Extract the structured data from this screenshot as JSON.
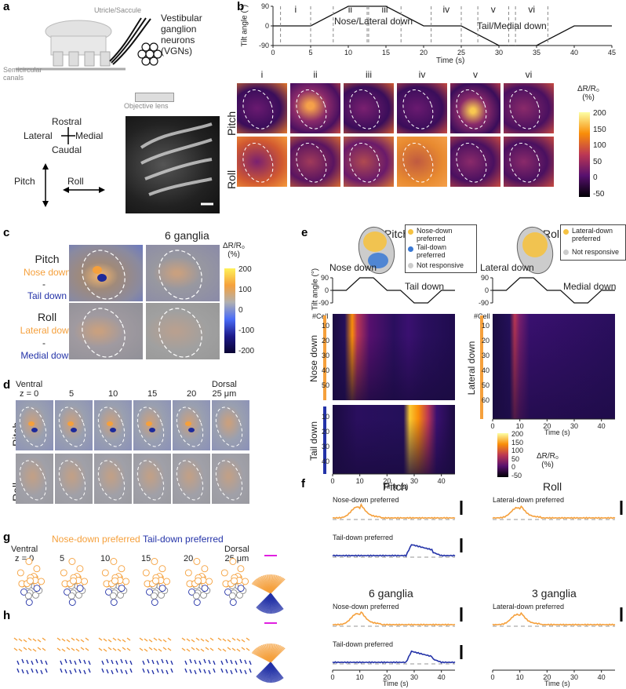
{
  "panels": {
    "a": "a",
    "b": "b",
    "c": "c",
    "d": "d",
    "e": "e",
    "f": "f",
    "g": "g",
    "h": "h"
  },
  "a": {
    "utricle": "Utricle/Saccule",
    "semicircular": "Semicircular\ncanals",
    "vgn": "Vestibular\nganglion\nneurons\n(VGNs)",
    "objective": "Objective lens",
    "rostral": "Rostral",
    "caudal": "Caudal",
    "lateral": "Lateral",
    "medial": "Medial",
    "pitch": "Pitch",
    "roll": "Roll"
  },
  "b": {
    "ylabel": "Tilt angle (°)",
    "xlabel": "Time (s)",
    "yticks": [
      "90",
      "0",
      "-90"
    ],
    "xticks": [
      "0",
      "5",
      "10",
      "15",
      "20",
      "25",
      "30",
      "35",
      "40",
      "45"
    ],
    "phases": [
      "i",
      "ii",
      "iii",
      "iv",
      "v",
      "vi"
    ],
    "nose_label": "Nose/Lateral down",
    "tail_label": "Tail/Medial down",
    "row_labels": [
      "Pitch",
      "Roll"
    ],
    "cbar_title": "ΔR/R₀\n(%)",
    "cbar_ticks": [
      "200",
      "150",
      "100",
      "50",
      "0",
      "-50"
    ]
  },
  "c": {
    "title": "6 ganglia",
    "pitch": "Pitch",
    "nose_down": "Nose down",
    "tail_down": "Tail down",
    "roll": "Roll",
    "lateral_down": "Lateral down",
    "medial_down": "Medial down",
    "dash": "-",
    "cbar_title": "ΔR/R₀\n(%)",
    "cbar_ticks": [
      "200",
      "100",
      "0",
      "-100",
      "-200"
    ]
  },
  "d": {
    "depths": [
      "Ventral\nz = 0",
      "5",
      "10",
      "15",
      "20",
      "Dorsal\n25 μm"
    ],
    "row_labels": [
      "Pitch",
      "Roll"
    ]
  },
  "e": {
    "pitch_title": "Pitch",
    "roll_title": "Roll",
    "legend_pitch": [
      "Nose-down\npreferred",
      "Tail-down\npreferred",
      "Not responsive"
    ],
    "legend_roll": [
      "Lateral-down\npreferred",
      "Not responsive"
    ],
    "ylabel": "Tilt angle (°)",
    "yticks": [
      "90",
      "0",
      "-90"
    ],
    "ann_nose": "Nose down",
    "ann_tail": "Tail down",
    "ann_lateral": "Lateral down",
    "ann_medial": "Medial down",
    "cell_label": "#Cell",
    "nose_rows": [
      "10",
      "20",
      "30",
      "40",
      "50"
    ],
    "tail_rows": [
      "10",
      "20",
      "30",
      "40"
    ],
    "lat_rows": [
      "10",
      "20",
      "30",
      "40",
      "50",
      "60"
    ],
    "group_nose": "Nose down",
    "group_tail": "Tail down",
    "group_lateral": "Lateral down",
    "xticks": [
      "0",
      "10",
      "20",
      "30",
      "40"
    ],
    "xlabel": "Time (s)",
    "cbar_title": "ΔR/R₀\n(%)",
    "cbar_ticks": [
      "200",
      "150",
      "100",
      "50",
      "0",
      "-50"
    ]
  },
  "f": {
    "pitch_title": "Pitch",
    "roll_title": "Roll",
    "g6": "6 ganglia",
    "g3": "3 ganglia",
    "nose_pref": "Nose-down preferred",
    "tail_pref": "Tail-down preferred",
    "lat_pref": "Lateral-down preferred",
    "xticks": [
      "0",
      "10",
      "20",
      "30",
      "40"
    ],
    "xlabel": "Time (s)"
  },
  "g": {
    "title_nose": "Nose-down preferred",
    "title_tail": "Tail-down preferred",
    "depths": [
      "Ventral\nz = 0",
      "5",
      "10",
      "15",
      "20",
      "Dorsal\n25 μm"
    ]
  },
  "colors": {
    "orange": "#f5a03c",
    "blue": "#2433a8",
    "inferno_hi": "#fcffa4",
    "inferno_lo": "#000004"
  }
}
